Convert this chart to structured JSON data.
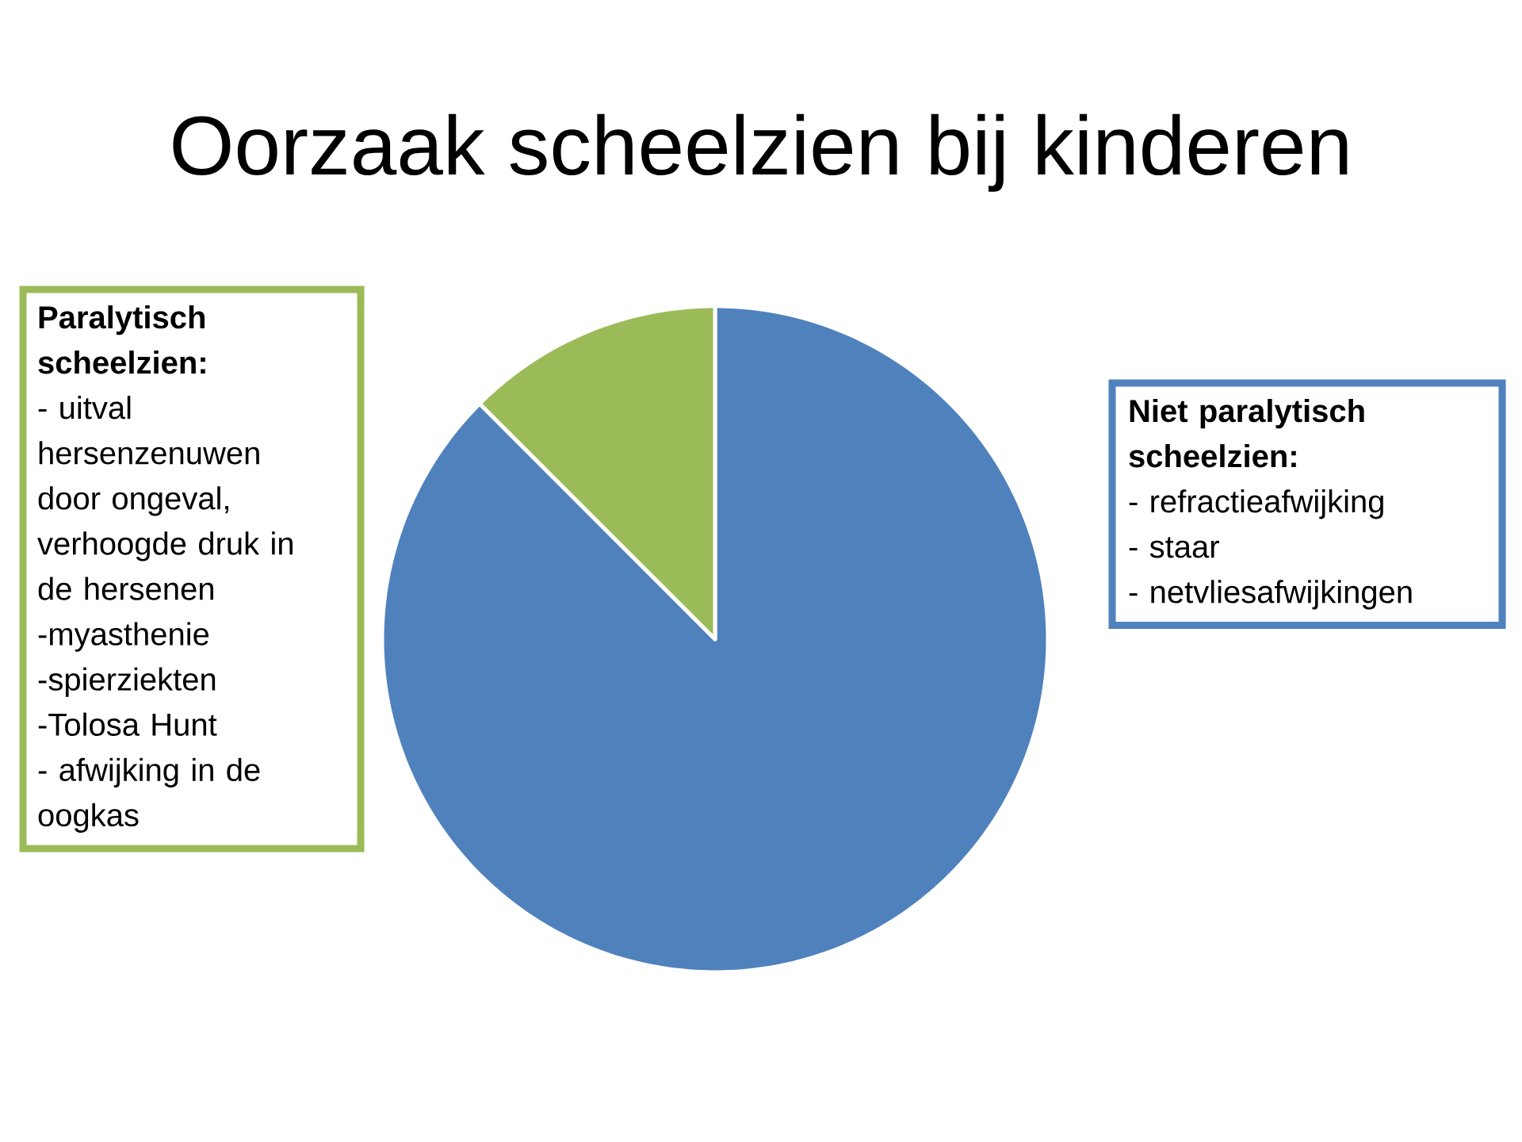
{
  "chart_data": {
    "type": "pie",
    "title": "Oorzaak scheelzien bij kinderen",
    "categories": [
      null,
      null
    ],
    "values": [
      87.5,
      12.5
    ],
    "colors": [
      "#4f81bd",
      "#9bbb59"
    ],
    "annotations": [
      "Paralytisch scheelzien:",
      "- uitval hersenzenuwen door ongeval, verhoogde druk in de hersenen",
      "-myasthenie",
      "-spierziekten",
      "-Tolosa Hunt",
      "- afwijking in de oogkas",
      "Niet paralytisch scheelzien:",
      "- refractieafwijking",
      "- staar",
      "- netvliesafwijkingen"
    ]
  }
}
